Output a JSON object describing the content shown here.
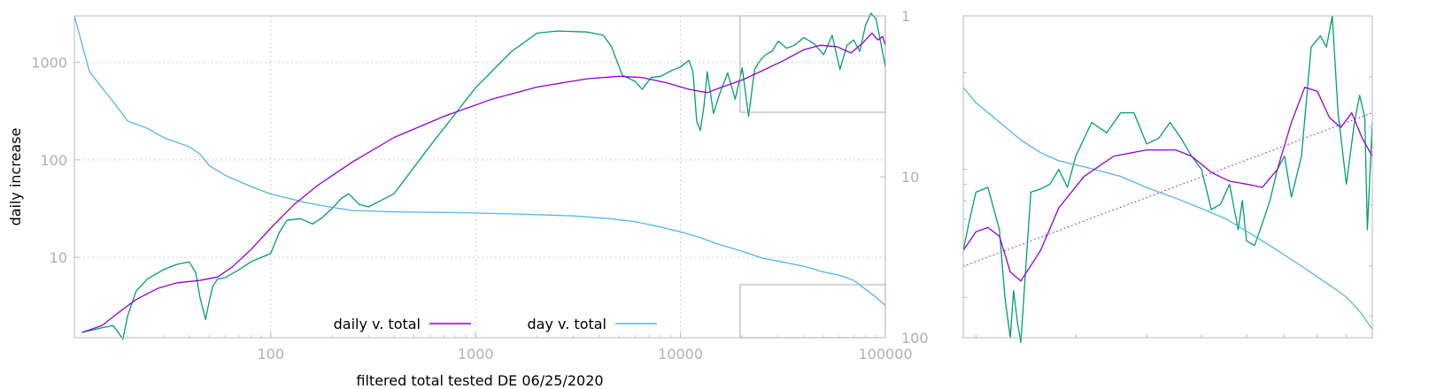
{
  "chart_data": [
    {
      "type": "line",
      "title": "",
      "xlabel": "filtered total tested DE 06/25/2020",
      "ylabel": "daily increase",
      "x_scale": "log",
      "y_scale": "log",
      "xlim": [
        11,
        100000
      ],
      "ylim": [
        1.5,
        3000
      ],
      "y2_scale": "log",
      "y2_reversed": true,
      "y2lim": [
        1,
        100
      ],
      "grid": true,
      "legend": "bottom-center",
      "x_ticks": [
        {
          "value": 100,
          "label": "100"
        },
        {
          "value": 1000,
          "label": "1000"
        },
        {
          "value": 10000,
          "label": "10000"
        },
        {
          "value": 100000,
          "label": "100000"
        }
      ],
      "y_ticks": [
        {
          "value": 10,
          "label": "10"
        },
        {
          "value": 100,
          "label": "100"
        },
        {
          "value": 1000,
          "label": "1000"
        }
      ],
      "y2_ticks": [
        {
          "value": 1,
          "label": "1"
        },
        {
          "value": 10,
          "label": "10"
        },
        {
          "value": 100,
          "label": "100"
        }
      ],
      "colors": {
        "daily": "#9400d3",
        "day": "#56b4e9",
        "raw": "#009e73",
        "frame": "#b8b8b8"
      },
      "series": [
        {
          "name": "daily v. total",
          "axis": "y",
          "color": "#9400d3",
          "x": [
            12,
            15,
            18,
            22,
            28,
            35,
            45,
            55,
            65,
            80,
            100,
            130,
            170,
            250,
            400,
            700,
            1200,
            2000,
            3500,
            5000,
            6500,
            8500,
            11000,
            13500,
            16000,
            20000,
            25000,
            32000,
            40000,
            48000,
            58000,
            68000,
            78000,
            86000,
            92000,
            97000,
            100000
          ],
          "y": [
            1.7,
            2.0,
            2.7,
            3.7,
            4.8,
            5.5,
            5.8,
            6.3,
            8.0,
            12,
            20,
            35,
            55,
            95,
            170,
            280,
            420,
            560,
            680,
            720,
            700,
            620,
            530,
            490,
            560,
            660,
            820,
            1050,
            1350,
            1500,
            1450,
            1250,
            1600,
            2000,
            1700,
            1850,
            1500
          ]
        },
        {
          "name": "day v. total",
          "axis": "y2",
          "color": "#56b4e9",
          "x": [
            11,
            12,
            13,
            15,
            17,
            20,
            25,
            30,
            40,
            45,
            50,
            60,
            80,
            100,
            150,
            200,
            250,
            400,
            800,
            1500,
            3000,
            4500,
            6000,
            8000,
            10000,
            12000,
            15000,
            20000,
            25000,
            32000,
            40000,
            50000,
            60000,
            70000,
            80000,
            90000,
            100000
          ],
          "y": [
            1.0,
            1.5,
            2.2,
            2.8,
            3.4,
            4.5,
            5.0,
            5.7,
            6.5,
            7.2,
            8.5,
            9.8,
            11.5,
            12.8,
            14.5,
            15.5,
            16.2,
            16.5,
            16.7,
            17.0,
            17.5,
            18.2,
            19.0,
            20.5,
            22.0,
            23.5,
            26.0,
            29.0,
            32.0,
            34.0,
            36.0,
            39.0,
            41.0,
            44.0,
            50.0,
            56.0,
            63.0
          ]
        },
        {
          "name": "",
          "axis": "y",
          "color": "#009e73",
          "x": [
            12,
            15,
            17,
            18,
            19,
            20,
            22,
            25,
            30,
            35,
            40,
            43,
            45,
            48,
            50,
            52,
            55,
            60,
            70,
            80,
            90,
            100,
            110,
            120,
            140,
            160,
            180,
            200,
            220,
            240,
            270,
            300,
            400,
            600,
            1000,
            1500,
            2000,
            2500,
            3500,
            4200,
            4600,
            5200,
            6000,
            6500,
            7200,
            8000,
            9000,
            10000,
            11000,
            11500,
            12000,
            12500,
            13000,
            13500,
            14500,
            15500,
            17000,
            18500,
            20000,
            21500,
            23000,
            24500,
            26000,
            28000,
            30000,
            33000,
            36000,
            40000,
            45000,
            50000,
            55000,
            60000,
            65000,
            70000,
            75000,
            80000,
            85000,
            90000,
            95000,
            100000
          ],
          "y": [
            1.7,
            1.9,
            2.0,
            1.7,
            1.45,
            2.5,
            4.5,
            6.0,
            7.5,
            8.5,
            9.0,
            7.0,
            4.0,
            2.3,
            3.5,
            5.0,
            6.0,
            6.2,
            7.5,
            9.0,
            10,
            11,
            18,
            24,
            25,
            22,
            26,
            32,
            40,
            45,
            35,
            33,
            45,
            140,
            550,
            1300,
            2000,
            2100,
            2050,
            1900,
            1450,
            740,
            640,
            530,
            700,
            720,
            820,
            900,
            1050,
            800,
            250,
            200,
            350,
            800,
            300,
            470,
            780,
            420,
            880,
            280,
            850,
            1050,
            1200,
            1300,
            1650,
            1400,
            1500,
            1800,
            1550,
            1200,
            1900,
            850,
            1500,
            1700,
            1300,
            2400,
            3200,
            2800,
            1600,
            900
          ]
        }
      ]
    },
    {
      "type": "line",
      "title": "",
      "xlabel": "",
      "ylabel": "",
      "note": "inset: zoom of upper-right region of the main plot, no tick labels printed",
      "x_scale": "log",
      "y_scale": "log",
      "xlim": [
        19000,
        100000
      ],
      "ylim": [
        300,
        3000
      ],
      "series": [
        {
          "name": "",
          "color": "#9400d3",
          "x": [
            19000,
            20000,
            21000,
            22000,
            23000,
            24000,
            26000,
            28000,
            31000,
            35000,
            40000,
            45000,
            48000,
            52000,
            56000,
            60000,
            64000,
            68000,
            72000,
            76000,
            80000,
            84000,
            88000,
            92000,
            96000,
            100000
          ],
          "y": [
            560,
            640,
            660,
            620,
            480,
            450,
            560,
            760,
            950,
            1100,
            1150,
            1150,
            1100,
            980,
            920,
            900,
            880,
            1000,
            1400,
            1800,
            1750,
            1450,
            1350,
            1500,
            1250,
            1100
          ]
        },
        {
          "name": "",
          "color": "#56b4e9",
          "axis": "y2",
          "x": [
            19000,
            20000,
            22000,
            24000,
            26000,
            28000,
            32000,
            36000,
            40000,
            45000,
            50000,
            55000,
            60000,
            65000,
            70000,
            75000,
            80000,
            85000,
            90000,
            95000,
            100000
          ],
          "y": [
            26,
            27.5,
            29.5,
            31.5,
            33,
            34,
            35,
            36,
            37.5,
            39,
            40.5,
            42,
            44,
            46,
            48,
            50,
            52,
            54,
            56,
            59,
            63
          ]
        },
        {
          "name": "",
          "color": "#9400d3",
          "style": "dotted",
          "x": [
            19000,
            100000
          ],
          "y": [
            500,
            1500
          ]
        },
        {
          "name": "",
          "color": "#009e73",
          "x": [
            19000,
            19500,
            20000,
            21000,
            22000,
            22500,
            23000,
            23300,
            23700,
            24000,
            24500,
            25000,
            26000,
            27000,
            28000,
            29000,
            30000,
            32000,
            34000,
            36000,
            38000,
            40000,
            42000,
            44000,
            46000,
            48000,
            50000,
            52000,
            54000,
            56000,
            58000,
            59000,
            60000,
            62000,
            64000,
            66000,
            68000,
            70000,
            72000,
            75000,
            78000,
            81000,
            83000,
            85000,
            87000,
            90000,
            93000,
            95000,
            97000,
            98000,
            100000
          ],
          "y": [
            560,
            700,
            850,
            880,
            650,
            400,
            300,
            420,
            330,
            290,
            500,
            850,
            870,
            900,
            1000,
            880,
            1100,
            1400,
            1300,
            1500,
            1500,
            1200,
            1250,
            1400,
            1250,
            1100,
            1000,
            750,
            780,
            900,
            650,
            800,
            600,
            580,
            680,
            800,
            1000,
            1100,
            820,
            1100,
            2400,
            2600,
            2400,
            3000,
            1500,
            900,
            1400,
            1700,
            1450,
            650,
            1400
          ]
        }
      ]
    }
  ]
}
